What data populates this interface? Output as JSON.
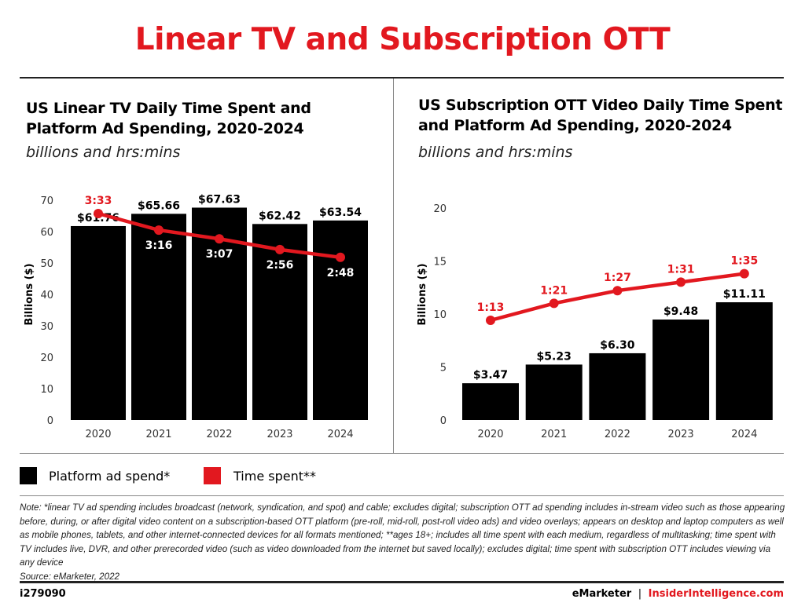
{
  "title": "Linear TV and Subscription OTT",
  "legend": [
    {
      "label": "Platform ad spend*",
      "color": "#000000"
    },
    {
      "label": "Time spent**",
      "color": "#e2181f"
    }
  ],
  "colors": {
    "bars": "#000000",
    "line": "#e2181f"
  },
  "chart_data": [
    {
      "type": "bar+line",
      "title": "US Linear TV Daily Time Spent and Platform Ad Spending, 2020-2024",
      "subtitle": "billions and hrs:mins",
      "ylabel": "Billions ($)",
      "ylim": [
        0,
        70
      ],
      "yticks": [
        "0",
        "10",
        "20",
        "30",
        "40",
        "50",
        "60",
        "70"
      ],
      "categories": [
        "2020",
        "2021",
        "2022",
        "2023",
        "2024"
      ],
      "series": [
        {
          "name": "Platform ad spend*",
          "kind": "bar",
          "values": [
            61.76,
            65.66,
            67.63,
            62.42,
            63.54
          ],
          "labels": [
            "$61.76",
            "$65.66",
            "$67.63",
            "$62.42",
            "$63.54"
          ]
        },
        {
          "name": "Time spent**",
          "kind": "line",
          "values": [
            "3:33",
            "3:16",
            "3:07",
            "2:56",
            "2:48"
          ]
        }
      ],
      "grid": false
    },
    {
      "type": "bar+line",
      "title": "US Subscription OTT Video Daily Time Spent and Platform Ad Spending, 2020-2024",
      "subtitle": "billions and hrs:mins",
      "ylabel": "Billions ($)",
      "ylim": [
        0,
        20
      ],
      "yticks": [
        "0",
        "5",
        "10",
        "15",
        "20"
      ],
      "categories": [
        "2020",
        "2021",
        "2022",
        "2023",
        "2024"
      ],
      "series": [
        {
          "name": "Platform ad spend*",
          "kind": "bar",
          "values": [
            3.47,
            5.23,
            6.3,
            9.48,
            11.11
          ],
          "labels": [
            "$3.47",
            "$5.23",
            "$6.30",
            "$9.48",
            "$11.11"
          ]
        },
        {
          "name": "Time spent**",
          "kind": "line",
          "values": [
            "1:13",
            "1:21",
            "1:27",
            "1:31",
            "1:35"
          ]
        }
      ],
      "grid": false
    }
  ],
  "left_title_lines": [
    "US Linear TV Daily Time Spent and",
    "Platform Ad Spending, 2020-2024"
  ],
  "right_title_lines": [
    "US Subscription OTT Video Daily Time Spent",
    "and Platform Ad Spending, 2020-2024"
  ],
  "note": "Note: *linear TV ad spending includes broadcast (network, syndication, and spot) and cable; excludes digital; subscription OTT ad spending includes in-stream video such as those appearing before, during, or after digital video content on a subscription-based OTT platform (pre-roll, mid-roll, post-roll video ads) and video overlays; appears on desktop and laptop computers as well as mobile phones, tablets, and other internet-connected devices for all formats mentioned; **ages 18+; includes all time spent with each medium, regardless of multitasking; time spent with TV includes live, DVR, and other prerecorded video (such as video downloaded from the internet but saved locally); excludes digital; time spent with subscription OTT includes viewing via any device",
  "source": "Source: eMarketer, 2022",
  "footer": {
    "id": "i279090",
    "brand_left": "eMarketer",
    "separator": "|",
    "brand_right": "InsiderIntelligence.com"
  }
}
